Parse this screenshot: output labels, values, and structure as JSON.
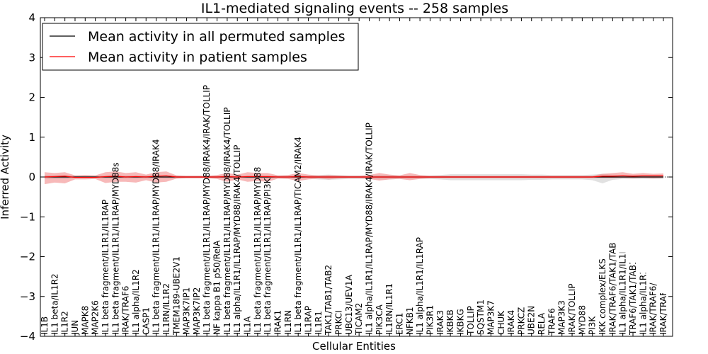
{
  "chart_data": {
    "type": "line",
    "title": "IL1-mediated signaling events -- 258 samples",
    "xlabel": "Cellular Entities",
    "ylabel": "Inferred Activity",
    "ylim": [
      -4,
      4
    ],
    "yticks": [
      -4,
      -3,
      -2,
      -1,
      0,
      1,
      2,
      3,
      4
    ],
    "ytick_labels": [
      "−4",
      "−3",
      "−2",
      "−1",
      "0",
      "1",
      "2",
      "3",
      "4"
    ],
    "legend_position": "top-left",
    "categories": [
      "IL1B",
      "IL1 beta/IL1R2",
      "IL1R2",
      "JUN",
      "MAPK8",
      "MAP2K6",
      "IL1 beta fragment/IL1R1/IL1RAP",
      "IL1 beta fragment/IL1R1/IL1RAP/MYD88s",
      "IRAK/TRAF6",
      "IL1 alpha/IL1R2",
      "CASP1",
      "IL1 beta fragment/IL1R1/IL1RAP/MYD88/IRAK4",
      "IL1RN/IL1R2",
      "TMEM189-UBE2V1",
      "MAP3K7IP1",
      "MAP3K7IP2",
      "IL1 beta fragment/IL1R1/IL1RAP/MYD88/IRAK4/IRAK/TOLLIP",
      "NF kappa B1 p50/RelA",
      "IL1 beta fragment/IL1R1/IL1RAP/MYD88/IRAK4/TOLLIP",
      "IL1 alpha/IL1R1/IL1RAP/MYD88/IRAK4/TOLLIP",
      "IL1A",
      "IL1 beta fragment/IL1R1/IL1RAP/MYD88",
      "IL1 beta fragment/IL1R1/IL1RAP/PI3K",
      "IRAK1",
      "IL1RN",
      "IL1 beta fragment/IL1R1/IL1RAP/TICAM2/IRAK4",
      "IL1RAP",
      "IL1R1",
      "TAK1/TAB1/TAB2",
      "PRKCI",
      "UBC13/UEV1A",
      "TICAM2",
      "IL1 alpha/IL1R1/IL1RAP/MYD88/IRAK4/IRAK/TOLLIP",
      "PIK3CA",
      "IL1RN/IL1R1",
      "ERC1",
      "NFKB1",
      "IL1 alpha/IL1R1/IL1RAP",
      "PIK3R1",
      "IRAK3",
      "IKBKB",
      "IKBKG",
      "TOLLIP",
      "SQSTM1",
      "MAP3K7",
      "CHUK",
      "IRAK4",
      "PRKCZ",
      "UBE2N",
      "RELA",
      "TRAF6",
      "MAP3K3",
      "IRAK/TOLLIP",
      "MYD88",
      "PI3K",
      "IKK complex/ELKS",
      "IRAK/TRAF6/TAK1/TAB1/TAB2",
      "IL1 alpha/IL1R1/IL1RAP/MYD88",
      "TRAF6/TAK1/TAB1/TAB2",
      "IL1 alpha/IL1R1/IL1RAP/MYD88/IRAK4",
      "IRAK/TRAF6/MEKK3",
      "IRAK/TRAF6/p62/Atypical PKCs"
    ],
    "series": [
      {
        "name": "Mean activity in all permuted samples",
        "color": "#000000",
        "values": [
          0.0,
          0.0,
          0.0,
          0.0,
          0.0,
          0.0,
          0.0,
          0.0,
          0.0,
          0.0,
          0.0,
          0.0,
          0.0,
          0.0,
          0.0,
          0.0,
          0.0,
          0.0,
          0.0,
          0.0,
          0.0,
          0.0,
          0.0,
          0.0,
          0.0,
          0.0,
          0.0,
          0.0,
          0.0,
          0.0,
          0.0,
          0.0,
          0.0,
          0.0,
          0.0,
          0.0,
          0.0,
          0.0,
          0.0,
          0.0,
          0.0,
          0.0,
          0.0,
          0.0,
          0.0,
          0.0,
          0.0,
          0.0,
          0.0,
          0.0,
          0.0,
          0.0,
          0.0,
          0.0,
          0.0,
          0.0,
          0.0,
          0.0,
          0.0,
          0.0,
          0.0,
          0.0
        ],
        "band_low": [
          -0.05,
          -0.05,
          -0.05,
          -0.04,
          -0.04,
          -0.04,
          -0.04,
          -0.04,
          -0.04,
          -0.04,
          -0.04,
          -0.04,
          -0.04,
          -0.04,
          -0.03,
          -0.03,
          -0.03,
          -0.03,
          -0.03,
          -0.03,
          -0.04,
          -0.04,
          -0.04,
          -0.04,
          -0.04,
          -0.04,
          -0.04,
          -0.06,
          -0.07,
          -0.06,
          -0.05,
          -0.05,
          -0.05,
          -0.06,
          -0.06,
          -0.05,
          -0.05,
          -0.05,
          -0.05,
          -0.06,
          -0.08,
          -0.08,
          -0.08,
          -0.08,
          -0.08,
          -0.08,
          -0.08,
          -0.08,
          -0.07,
          -0.07,
          -0.06,
          -0.06,
          -0.06,
          -0.06,
          -0.08,
          -0.16,
          -0.07,
          -0.05,
          -0.05,
          -0.05,
          -0.05,
          -0.05
        ],
        "band_high": [
          0.05,
          0.05,
          0.05,
          0.04,
          0.04,
          0.04,
          0.04,
          0.04,
          0.04,
          0.04,
          0.04,
          0.04,
          0.04,
          0.04,
          0.03,
          0.03,
          0.03,
          0.03,
          0.03,
          0.03,
          0.04,
          0.04,
          0.04,
          0.04,
          0.04,
          0.04,
          0.04,
          0.05,
          0.06,
          0.05,
          0.04,
          0.04,
          0.04,
          0.05,
          0.05,
          0.04,
          0.04,
          0.04,
          0.04,
          0.05,
          0.07,
          0.07,
          0.07,
          0.07,
          0.07,
          0.07,
          0.07,
          0.07,
          0.06,
          0.06,
          0.05,
          0.05,
          0.05,
          0.05,
          0.06,
          0.08,
          0.06,
          0.05,
          0.05,
          0.05,
          0.05,
          0.05
        ]
      },
      {
        "name": "Mean activity in patient samples",
        "color": "#ff0000",
        "values": [
          0.0,
          0.01,
          0.02,
          -0.01,
          -0.01,
          -0.01,
          0.01,
          0.02,
          0.0,
          0.01,
          0.0,
          0.02,
          0.03,
          0.0,
          0.0,
          0.0,
          0.0,
          0.0,
          0.01,
          0.0,
          0.01,
          0.01,
          0.01,
          0.0,
          0.0,
          0.01,
          0.0,
          0.0,
          0.0,
          0.0,
          0.0,
          0.0,
          0.0,
          0.0,
          0.0,
          0.0,
          0.0,
          0.0,
          0.0,
          0.0,
          0.0,
          0.0,
          0.0,
          0.0,
          0.0,
          0.0,
          0.0,
          0.0,
          0.0,
          0.0,
          0.0,
          0.0,
          0.0,
          0.0,
          0.0,
          0.02,
          0.02,
          0.03,
          0.02,
          0.03,
          0.03,
          0.03
        ],
        "band_low": [
          -0.18,
          -0.14,
          -0.16,
          -0.06,
          -0.06,
          -0.05,
          -0.15,
          -0.12,
          -0.12,
          -0.14,
          -0.08,
          -0.14,
          -0.12,
          -0.04,
          -0.03,
          -0.03,
          -0.03,
          -0.05,
          -0.12,
          -0.06,
          -0.12,
          -0.1,
          -0.12,
          -0.04,
          -0.05,
          -0.1,
          -0.06,
          -0.04,
          -0.06,
          -0.04,
          -0.03,
          -0.03,
          -0.05,
          -0.09,
          -0.06,
          -0.05,
          -0.08,
          -0.05,
          -0.03,
          -0.03,
          -0.03,
          -0.03,
          -0.03,
          -0.03,
          -0.03,
          -0.03,
          -0.03,
          -0.03,
          -0.03,
          -0.03,
          -0.03,
          -0.03,
          -0.03,
          -0.03,
          -0.03,
          -0.03,
          -0.03,
          -0.02,
          -0.03,
          -0.02,
          -0.03,
          -0.02
        ],
        "band_high": [
          0.12,
          0.1,
          0.12,
          0.04,
          0.05,
          0.04,
          0.12,
          0.14,
          0.1,
          0.12,
          0.06,
          0.12,
          0.14,
          0.04,
          0.03,
          0.03,
          0.03,
          0.05,
          0.1,
          0.06,
          0.12,
          0.1,
          0.1,
          0.04,
          0.05,
          0.1,
          0.06,
          0.04,
          0.05,
          0.04,
          0.03,
          0.03,
          0.05,
          0.1,
          0.06,
          0.04,
          0.1,
          0.05,
          0.03,
          0.03,
          0.03,
          0.03,
          0.03,
          0.03,
          0.03,
          0.03,
          0.03,
          0.03,
          0.03,
          0.03,
          0.03,
          0.03,
          0.03,
          0.03,
          0.03,
          0.08,
          0.1,
          0.12,
          0.08,
          0.1,
          0.08,
          0.09
        ]
      }
    ]
  }
}
